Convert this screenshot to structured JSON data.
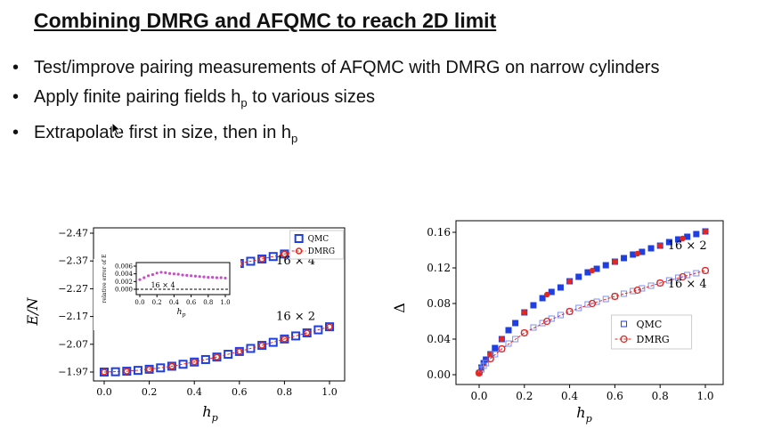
{
  "slide": {
    "title": "Combining DMRG and AFQMC to reach 2D limit",
    "bullets": [
      {
        "text": "Test/improve pairing measurements of AFQMC with DMRG on narrow cylinders",
        "sub": ""
      },
      {
        "text": "Apply finite pairing fields h",
        "sub": "p",
        "after": " to various sizes"
      },
      {
        "text": "Extrapolate first in size, then in h",
        "sub": "p",
        "after": ""
      }
    ],
    "bullet_glyph": "•"
  },
  "chart_data": [
    {
      "type": "scatter",
      "title": "",
      "xlabel": "h_p",
      "ylabel": "E/N",
      "xlim": [
        0.0,
        1.0
      ],
      "ylim": [
        -2.47,
        -1.97
      ],
      "xticks": [
        "0.0",
        "0.2",
        "0.4",
        "0.6",
        "0.8",
        "1.0"
      ],
      "yticks": [
        "−1.97",
        "−2.07",
        "−2.17",
        "−2.27",
        "−2.37",
        "−2.47"
      ],
      "legend": {
        "placement": "top-right",
        "entries": [
          "QMC",
          "DMRG"
        ]
      },
      "annotations": [
        "16 × 2",
        "16 × 4"
      ],
      "series": [
        {
          "name": "QMC",
          "label": "16 × 2",
          "x": [
            0.0,
            0.05,
            0.1,
            0.15,
            0.2,
            0.25,
            0.3,
            0.35,
            0.4,
            0.45,
            0.5,
            0.55,
            0.6,
            0.65,
            0.7,
            0.75,
            0.8,
            0.85,
            0.9,
            0.95,
            1.0
          ],
          "y": [
            -1.97,
            -1.971,
            -1.973,
            -1.976,
            -1.98,
            -1.985,
            -1.991,
            -1.998,
            -2.006,
            -2.015,
            -2.024,
            -2.034,
            -2.044,
            -2.055,
            -2.066,
            -2.077,
            -2.089,
            -2.1,
            -2.111,
            -2.122,
            -2.133
          ]
        },
        {
          "name": "DMRG",
          "label": "16 × 2",
          "x": [
            0.0,
            0.1,
            0.2,
            0.3,
            0.4,
            0.5,
            0.6,
            0.7,
            0.8,
            0.9,
            1.0
          ],
          "y": [
            -1.97,
            -1.973,
            -1.98,
            -1.991,
            -2.006,
            -2.024,
            -2.044,
            -2.066,
            -2.089,
            -2.111,
            -2.133
          ]
        },
        {
          "name": "QMC",
          "label": "16 × 4",
          "x": [
            0.0,
            0.05,
            0.1,
            0.2,
            0.25,
            0.3,
            0.35,
            0.45,
            0.5,
            0.55,
            0.6,
            0.65,
            0.7,
            0.75,
            0.8,
            0.85,
            0.9,
            0.95,
            1.0
          ],
          "y": [
            -2.278,
            -2.282,
            -2.287,
            -2.3,
            -2.307,
            -2.314,
            -2.322,
            -2.337,
            -2.345,
            -2.353,
            -2.361,
            -2.369,
            -2.377,
            -2.386,
            -2.395,
            -2.404,
            -2.413,
            -2.422,
            -2.432
          ]
        },
        {
          "name": "DMRG",
          "label": "16 × 4",
          "x": [
            0.0,
            0.1,
            0.2,
            0.3,
            0.4,
            0.5,
            0.6,
            0.7,
            0.8,
            0.9,
            1.0
          ],
          "y": [
            -2.278,
            -2.287,
            -2.3,
            -2.314,
            -2.33,
            -2.345,
            -2.361,
            -2.377,
            -2.395,
            -2.413,
            -2.432
          ]
        }
      ],
      "inset": {
        "xlabel": "h_p",
        "ylabel": "relative error of E",
        "xticks": [
          "0.0",
          "0.2",
          "0.4",
          "0.6",
          "0.8",
          "1.0"
        ],
        "yticks": [
          "0.006",
          "0.004",
          "0.002",
          "0.000"
        ],
        "ylim": [
          -0.001,
          0.007
        ],
        "annotation": "16 × 4",
        "x": [
          0.0,
          0.05,
          0.1,
          0.15,
          0.2,
          0.25,
          0.3,
          0.35,
          0.4,
          0.45,
          0.5,
          0.55,
          0.6,
          0.65,
          0.7,
          0.75,
          0.8,
          0.85,
          0.9,
          0.95,
          1.0
        ],
        "y": [
          0.0025,
          0.003,
          0.0035,
          0.0038,
          0.0042,
          0.0044,
          0.0043,
          0.0041,
          0.004,
          0.0039,
          0.0037,
          0.0036,
          0.0035,
          0.0034,
          0.0033,
          0.0032,
          0.0031,
          0.0031,
          0.003,
          0.003,
          0.0029
        ]
      }
    },
    {
      "type": "scatter",
      "title": "",
      "xlabel": "h_p",
      "ylabel": "Δ",
      "xlim": [
        0.0,
        1.0
      ],
      "ylim": [
        0.0,
        0.16
      ],
      "xticks": [
        "0.0",
        "0.2",
        "0.4",
        "0.6",
        "0.8",
        "1.0"
      ],
      "yticks": [
        "0.16",
        "0.12",
        "0.08",
        "0.04",
        "0.00"
      ],
      "legend": {
        "placement": "lower-right",
        "entries": [
          "QMC",
          "DMRG"
        ]
      },
      "annotations": [
        "16 × 2",
        "16 × 4"
      ],
      "series": [
        {
          "name": "QMC",
          "label": "16 × 2",
          "x": [
            0.0,
            0.01,
            0.02,
            0.03,
            0.05,
            0.07,
            0.1,
            0.13,
            0.16,
            0.2,
            0.24,
            0.28,
            0.32,
            0.36,
            0.4,
            0.44,
            0.48,
            0.52,
            0.56,
            0.6,
            0.64,
            0.68,
            0.72,
            0.76,
            0.8,
            0.84,
            0.88,
            0.92,
            0.96,
            1.0
          ],
          "y": [
            0.002,
            0.008,
            0.013,
            0.017,
            0.023,
            0.03,
            0.04,
            0.05,
            0.058,
            0.07,
            0.078,
            0.086,
            0.093,
            0.098,
            0.105,
            0.11,
            0.115,
            0.119,
            0.123,
            0.127,
            0.131,
            0.135,
            0.138,
            0.142,
            0.145,
            0.149,
            0.152,
            0.155,
            0.158,
            0.161
          ]
        },
        {
          "name": "DMRG",
          "label": "16 × 2",
          "x": [
            0.0,
            0.05,
            0.1,
            0.2,
            0.3,
            0.4,
            0.5,
            0.6,
            0.7,
            0.8,
            0.9,
            1.0
          ],
          "y": [
            0.002,
            0.023,
            0.04,
            0.07,
            0.09,
            0.105,
            0.117,
            0.127,
            0.136,
            0.145,
            0.153,
            0.161
          ]
        },
        {
          "name": "QMC",
          "label": "16 × 4",
          "x": [
            0.0,
            0.01,
            0.02,
            0.03,
            0.05,
            0.07,
            0.1,
            0.13,
            0.16,
            0.2,
            0.24,
            0.28,
            0.32,
            0.36,
            0.4,
            0.44,
            0.48,
            0.52,
            0.56,
            0.6,
            0.64,
            0.68,
            0.72,
            0.76,
            0.8,
            0.84,
            0.88,
            0.92,
            0.96,
            1.0
          ],
          "y": [
            0.002,
            0.006,
            0.01,
            0.013,
            0.018,
            0.023,
            0.029,
            0.035,
            0.04,
            0.047,
            0.053,
            0.058,
            0.063,
            0.067,
            0.071,
            0.075,
            0.079,
            0.082,
            0.085,
            0.088,
            0.091,
            0.094,
            0.097,
            0.1,
            0.103,
            0.106,
            0.109,
            0.112,
            0.114,
            0.117
          ]
        },
        {
          "name": "DMRG",
          "label": "16 × 4",
          "x": [
            0.0,
            0.05,
            0.1,
            0.2,
            0.3,
            0.4,
            0.5,
            0.6,
            0.7,
            0.8,
            0.9,
            1.0
          ],
          "y": [
            0.002,
            0.018,
            0.029,
            0.047,
            0.06,
            0.071,
            0.08,
            0.088,
            0.095,
            0.103,
            0.11,
            0.117
          ]
        }
      ]
    }
  ],
  "colors": {
    "qmc": "#1f3fe0",
    "qmc_light": "#7f8fe8",
    "dmrg": "#e0281f",
    "inset": "#c84ec8"
  }
}
